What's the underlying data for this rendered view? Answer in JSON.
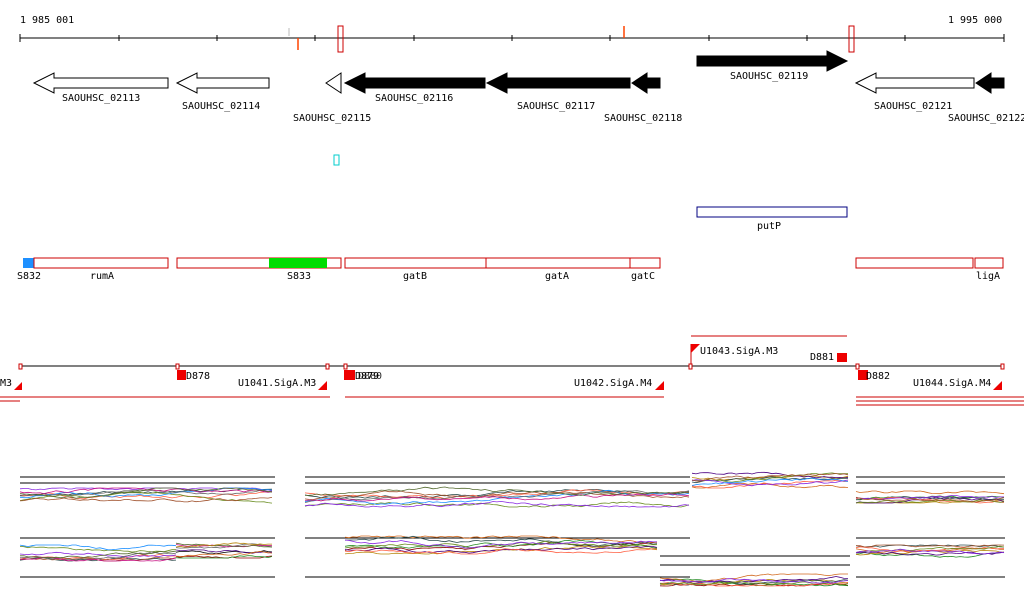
{
  "ruler": {
    "start_label": "1 985 001",
    "end_label": "1 995 000"
  },
  "genes": [
    {
      "id": "SAOUHSC_02113",
      "strand": "-",
      "style": "open"
    },
    {
      "id": "SAOUHSC_02114",
      "strand": "-",
      "style": "open"
    },
    {
      "id": "SAOUHSC_02115",
      "strand": "-",
      "style": "open"
    },
    {
      "id": "SAOUHSC_02116",
      "strand": "-",
      "style": "filled"
    },
    {
      "id": "SAOUHSC_02117",
      "strand": "-",
      "style": "filled"
    },
    {
      "id": "SAOUHSC_02118",
      "strand": "-",
      "style": "filled"
    },
    {
      "id": "SAOUHSC_02119",
      "strand": "+",
      "style": "filled"
    },
    {
      "id": "SAOUHSC_02121",
      "strand": "-",
      "style": "open"
    },
    {
      "id": "SAOUHSC_02122",
      "strand": "-",
      "style": "filled"
    }
  ],
  "protein_track": {
    "label": "putP"
  },
  "annotation_track": [
    {
      "label": "S832",
      "color": "#1e90ff"
    },
    {
      "label": "rumA"
    },
    {
      "label": "S833",
      "color": "#00dd00"
    },
    {
      "label": "gatB"
    },
    {
      "label": "gatA"
    },
    {
      "label": "gatC"
    },
    {
      "label": "ligA"
    }
  ],
  "transcription_units": [
    {
      "label": "M3"
    },
    {
      "label": "D878"
    },
    {
      "label": "U1041.SigA.M3"
    },
    {
      "label": "D879"
    },
    {
      "label": "D880"
    },
    {
      "label": "U1042.SigA.M4"
    },
    {
      "label": "U1043.SigA.M3"
    },
    {
      "label": "D881"
    },
    {
      "label": "D882"
    },
    {
      "label": "U1044.SigA.M4"
    }
  ],
  "colors": {
    "gene_outline": "#000000",
    "annotation_outline": "#cc0000",
    "protein_outline": "#000080",
    "tu_line": "#cc0000",
    "marker_red": "#ee0000"
  }
}
